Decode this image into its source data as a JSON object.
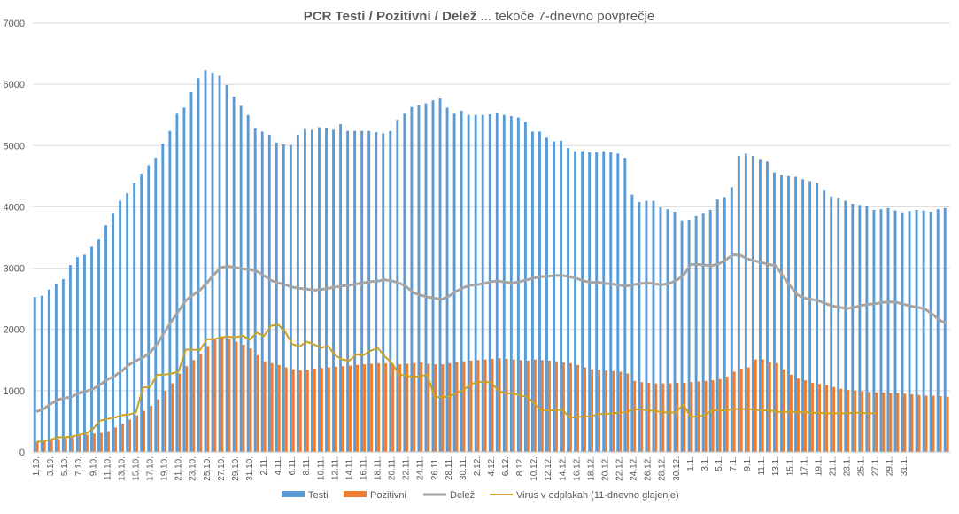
{
  "chart_data": {
    "type": "bar",
    "title_bold": "PCR Testi / Pozitivni / Delež",
    "title_rest": " ... tekoče 7-dnevno povprečje",
    "ylim": [
      0,
      7000
    ],
    "yticks": [
      0,
      1000,
      2000,
      3000,
      4000,
      5000,
      6000,
      7000
    ],
    "xtick_labels": [
      "1.10.",
      "3.10.",
      "5.10.",
      "7.10.",
      "9.10.",
      "11.10.",
      "13.10.",
      "15.10.",
      "17.10.",
      "19.10.",
      "21.10.",
      "23.10.",
      "25.10.",
      "27.10.",
      "29.10.",
      "31.10.",
      "2.11.",
      "4.11.",
      "6.11.",
      "8.11.",
      "10.11.",
      "12.11.",
      "14.11.",
      "16.11.",
      "18.11.",
      "20.11.",
      "22.11.",
      "24.11.",
      "26.11.",
      "28.11.",
      "30.11.",
      "2.12.",
      "4.12.",
      "6.12.",
      "8.12.",
      "10.12.",
      "12.12.",
      "14.12.",
      "16.12.",
      "18.12.",
      "20.12.",
      "22.12.",
      "24.12.",
      "26.12.",
      "28.12.",
      "30.12.",
      "1.1.",
      "3.1.",
      "5.1.",
      "7.1.",
      "9.1.",
      "11.1.",
      "13.1.",
      "15.1.",
      "17.1.",
      "19.1.",
      "21.1.",
      "23.1.",
      "25.1.",
      "27.1.",
      "29.1.",
      "31.1."
    ],
    "series": [
      {
        "name": "Testi",
        "kind": "bar",
        "color": "#5B9BD5",
        "values": [
          2530,
          2550,
          2650,
          2750,
          2820,
          3050,
          3180,
          3220,
          3350,
          3470,
          3700,
          3900,
          4100,
          4220,
          4390,
          4540,
          4680,
          4800,
          5030,
          5240,
          5520,
          5620,
          5870,
          6100,
          6230,
          6190,
          6140,
          5990,
          5800,
          5650,
          5500,
          5280,
          5230,
          5180,
          5050,
          5020,
          5010,
          5180,
          5270,
          5260,
          5300,
          5290,
          5260,
          5350,
          5240,
          5240,
          5240,
          5240,
          5220,
          5200,
          5240,
          5420,
          5520,
          5630,
          5660,
          5690,
          5740,
          5770,
          5620,
          5520,
          5570,
          5500,
          5500,
          5500,
          5510,
          5530,
          5500,
          5480,
          5460,
          5380,
          5230,
          5230,
          5130,
          5070,
          5080,
          4960,
          4910,
          4910,
          4890,
          4890,
          4910,
          4890,
          4870,
          4800,
          4200,
          4080,
          4100,
          4100,
          3990,
          3960,
          3920,
          3780,
          3790,
          3850,
          3900,
          3950,
          4120,
          4160,
          4320,
          4830,
          4870,
          4830,
          4780,
          4740,
          4560,
          4520,
          4500,
          4490,
          4450,
          4420,
          4390,
          4280,
          4170,
          4150,
          4100,
          4050,
          4030,
          4020,
          3950,
          3960,
          3980,
          3940,
          3910,
          3930,
          3950,
          3940,
          3920,
          3960,
          3980
        ]
      },
      {
        "name": "Pozitivni",
        "kind": "bar",
        "color": "#ED7D31",
        "values": [
          160,
          170,
          190,
          210,
          240,
          260,
          270,
          280,
          300,
          310,
          340,
          400,
          460,
          530,
          600,
          670,
          750,
          860,
          1000,
          1120,
          1280,
          1400,
          1500,
          1600,
          1730,
          1830,
          1870,
          1840,
          1800,
          1750,
          1690,
          1580,
          1480,
          1450,
          1420,
          1380,
          1350,
          1330,
          1340,
          1360,
          1370,
          1380,
          1390,
          1400,
          1410,
          1420,
          1430,
          1440,
          1450,
          1450,
          1440,
          1430,
          1440,
          1450,
          1460,
          1440,
          1430,
          1430,
          1450,
          1470,
          1480,
          1490,
          1500,
          1510,
          1520,
          1530,
          1520,
          1510,
          1500,
          1490,
          1510,
          1500,
          1490,
          1480,
          1460,
          1450,
          1420,
          1380,
          1350,
          1340,
          1330,
          1320,
          1310,
          1280,
          1160,
          1140,
          1130,
          1120,
          1120,
          1120,
          1130,
          1130,
          1140,
          1150,
          1160,
          1170,
          1190,
          1230,
          1310,
          1360,
          1380,
          1510,
          1510,
          1470,
          1450,
          1350,
          1260,
          1200,
          1170,
          1130,
          1110,
          1090,
          1060,
          1030,
          1010,
          1000,
          990,
          980,
          970,
          970,
          960,
          960,
          950,
          940,
          930,
          920,
          920,
          910,
          900,
          870,
          840
        ]
      },
      {
        "name": "Delež",
        "kind": "line",
        "color": "#A5A5A5",
        "values": [
          660,
          700,
          780,
          850,
          880,
          900,
          960,
          990,
          1030,
          1100,
          1180,
          1240,
          1320,
          1420,
          1490,
          1540,
          1620,
          1760,
          1950,
          2130,
          2300,
          2470,
          2560,
          2640,
          2760,
          2900,
          3010,
          3030,
          3010,
          2990,
          2980,
          2950,
          2880,
          2800,
          2760,
          2730,
          2690,
          2670,
          2660,
          2640,
          2650,
          2670,
          2690,
          2710,
          2720,
          2740,
          2760,
          2780,
          2790,
          2810,
          2790,
          2760,
          2700,
          2600,
          2560,
          2530,
          2510,
          2490,
          2540,
          2620,
          2680,
          2720,
          2730,
          2750,
          2780,
          2790,
          2770,
          2760,
          2780,
          2810,
          2840,
          2860,
          2870,
          2880,
          2880,
          2860,
          2830,
          2790,
          2770,
          2770,
          2750,
          2740,
          2720,
          2710,
          2730,
          2750,
          2760,
          2740,
          2730,
          2750,
          2800,
          2880,
          3060,
          3060,
          3050,
          3040,
          3070,
          3140,
          3220,
          3210,
          3150,
          3120,
          3090,
          3060,
          3040,
          2870,
          2710,
          2570,
          2510,
          2490,
          2470,
          2420,
          2380,
          2360,
          2340,
          2360,
          2390,
          2410,
          2420,
          2440,
          2450,
          2440,
          2410,
          2380,
          2360,
          2330,
          2250,
          2150,
          2100
        ]
      },
      {
        "name": "Virus v odplakah (11-dnevno glajenje)",
        "kind": "line",
        "color": "#C9A227",
        "points": [
          [
            0,
            160
          ],
          [
            1,
            180
          ],
          [
            2,
            200
          ],
          [
            3,
            240
          ],
          [
            4,
            240
          ],
          [
            5,
            250
          ],
          [
            6,
            280
          ],
          [
            7,
            300
          ],
          [
            8,
            380
          ],
          [
            9,
            510
          ],
          [
            10,
            540
          ],
          [
            11,
            560
          ],
          [
            12,
            600
          ],
          [
            13,
            610
          ],
          [
            14,
            640
          ],
          [
            15,
            1050
          ],
          [
            16,
            1060
          ],
          [
            17,
            1260
          ],
          [
            18,
            1260
          ],
          [
            19,
            1280
          ],
          [
            20,
            1310
          ],
          [
            21,
            1670
          ],
          [
            22,
            1670
          ],
          [
            23,
            1660
          ],
          [
            24,
            1840
          ],
          [
            25,
            1840
          ],
          [
            26,
            1870
          ],
          [
            27,
            1880
          ],
          [
            28,
            1870
          ],
          [
            29,
            1900
          ],
          [
            30,
            1830
          ],
          [
            31,
            1950
          ],
          [
            32,
            1890
          ],
          [
            33,
            2060
          ],
          [
            34,
            2080
          ],
          [
            35,
            1960
          ],
          [
            36,
            1760
          ],
          [
            37,
            1720
          ],
          [
            38,
            1800
          ],
          [
            39,
            1760
          ],
          [
            40,
            1700
          ],
          [
            41,
            1730
          ],
          [
            42,
            1580
          ],
          [
            43,
            1510
          ],
          [
            44,
            1490
          ],
          [
            45,
            1590
          ],
          [
            46,
            1580
          ],
          [
            47,
            1650
          ],
          [
            48,
            1700
          ],
          [
            49,
            1560
          ],
          [
            50,
            1450
          ],
          [
            51,
            1260
          ],
          [
            52,
            1250
          ],
          [
            53,
            1220
          ],
          [
            54,
            1240
          ],
          [
            55,
            1260
          ],
          [
            56,
            890
          ],
          [
            57,
            900
          ],
          [
            58,
            900
          ],
          [
            59,
            960
          ],
          [
            60,
            1000
          ],
          [
            61,
            1100
          ],
          [
            62,
            1140
          ],
          [
            63,
            1150
          ],
          [
            64,
            1130
          ],
          [
            65,
            1000
          ],
          [
            66,
            950
          ],
          [
            67,
            960
          ],
          [
            68,
            920
          ],
          [
            69,
            900
          ],
          [
            70,
            790
          ],
          [
            71,
            680
          ],
          [
            72,
            680
          ],
          [
            73,
            680
          ],
          [
            74,
            690
          ],
          [
            75,
            560
          ],
          [
            76,
            570
          ],
          [
            77,
            580
          ],
          [
            78,
            580
          ],
          [
            79,
            620
          ],
          [
            80,
            620
          ],
          [
            81,
            630
          ],
          [
            82,
            640
          ],
          [
            83,
            650
          ],
          [
            84,
            700
          ],
          [
            85,
            690
          ],
          [
            86,
            680
          ],
          [
            87,
            670
          ],
          [
            88,
            650
          ],
          [
            89,
            640
          ],
          [
            90,
            650
          ],
          [
            91,
            780
          ],
          [
            92,
            570
          ],
          [
            93,
            580
          ],
          [
            94,
            600
          ],
          [
            95,
            680
          ],
          [
            96,
            680
          ],
          [
            97,
            680
          ],
          [
            98,
            700
          ],
          [
            99,
            700
          ],
          [
            100,
            700
          ],
          [
            101,
            690
          ],
          [
            102,
            680
          ],
          [
            103,
            680
          ],
          [
            104,
            660
          ],
          [
            105,
            650
          ],
          [
            106,
            660
          ],
          [
            107,
            650
          ],
          [
            108,
            650
          ],
          [
            109,
            640
          ],
          [
            110,
            640
          ],
          [
            111,
            630
          ],
          [
            112,
            630
          ],
          [
            113,
            630
          ],
          [
            114,
            630
          ],
          [
            115,
            640
          ],
          [
            116,
            640
          ],
          [
            117,
            630
          ],
          [
            118,
            630
          ]
        ]
      }
    ]
  }
}
